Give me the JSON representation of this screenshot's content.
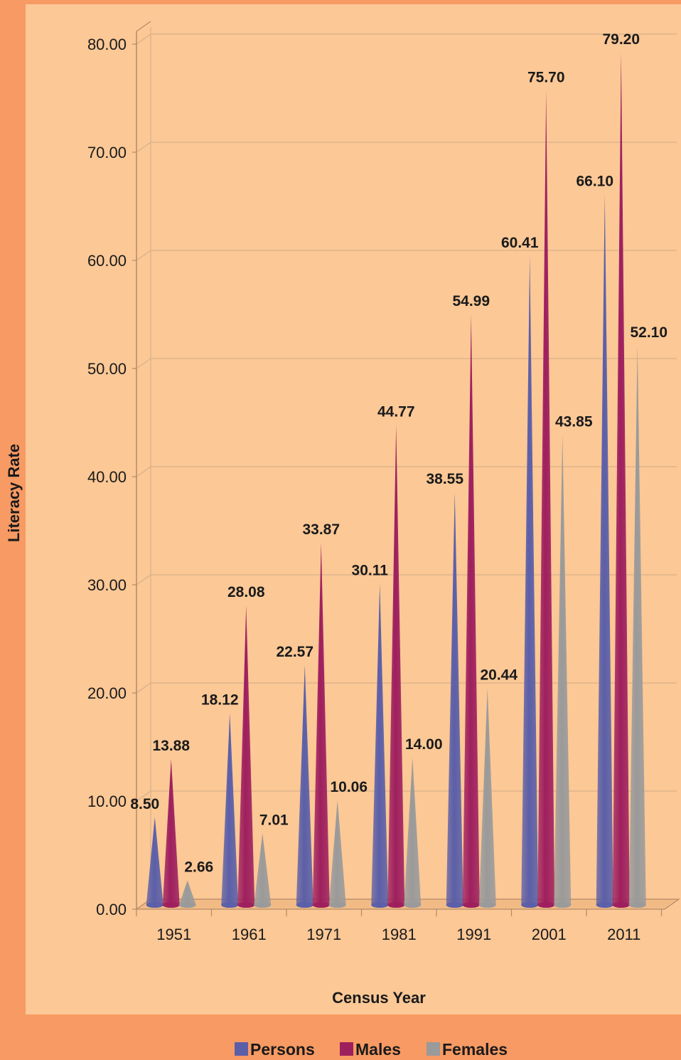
{
  "chart_data": {
    "type": "bar",
    "categories": [
      "1951",
      "1961",
      "1971",
      "1981",
      "1991",
      "2001",
      "2011"
    ],
    "series": [
      {
        "name": "Persons",
        "color": "#5b5fa8",
        "values": [
          8.5,
          18.12,
          22.57,
          30.11,
          38.55,
          60.41,
          66.1
        ]
      },
      {
        "name": "Males",
        "color": "#9e1f5e",
        "values": [
          13.88,
          28.08,
          33.87,
          44.77,
          54.99,
          75.7,
          79.2
        ]
      },
      {
        "name": "Females",
        "color": "#9a9a9a",
        "values": [
          2.66,
          7.01,
          10.06,
          14.0,
          20.44,
          43.85,
          52.1
        ]
      }
    ],
    "xlabel": "Census Year",
    "ylabel": "Literacy Rate",
    "ylim": [
      0,
      80
    ],
    "yticks": [
      "0.00",
      "10.00",
      "20.00",
      "30.00",
      "40.00",
      "50.00",
      "60.00",
      "70.00",
      "80.00"
    ],
    "grid": true,
    "legend_position": "bottom",
    "background": "#fbc896",
    "frame_color": "#f79a63"
  }
}
